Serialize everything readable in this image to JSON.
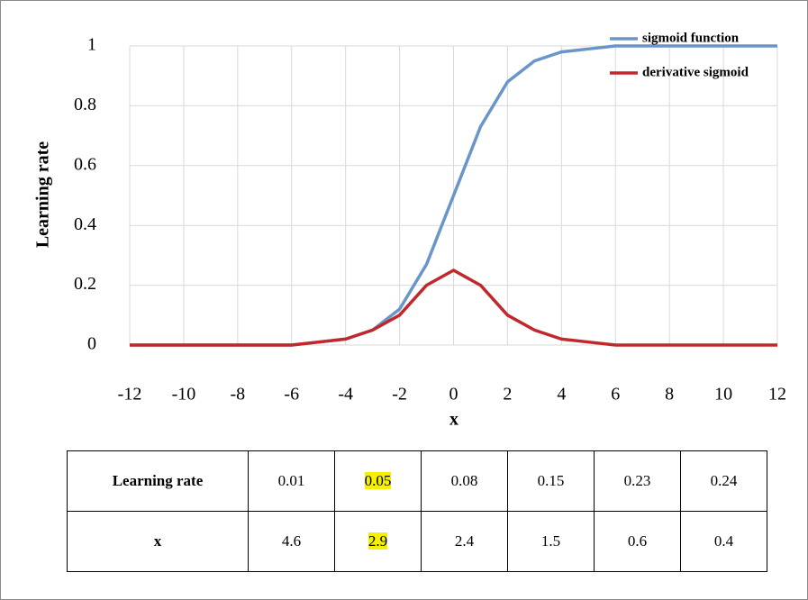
{
  "chart_data": {
    "type": "line",
    "x": [
      -12,
      -11,
      -10,
      -9,
      -8,
      -7,
      -6,
      -5,
      -4,
      -3,
      -2,
      -1,
      0,
      1,
      2,
      3,
      4,
      5,
      6,
      7,
      8,
      9,
      10,
      11,
      12
    ],
    "series": [
      {
        "name": "sigmoid function",
        "color": "#6a95c9",
        "values": [
          0,
          0,
          0,
          0,
          0,
          0,
          0,
          0.01,
          0.02,
          0.05,
          0.12,
          0.27,
          0.5,
          0.73,
          0.88,
          0.95,
          0.98,
          0.99,
          1,
          1,
          1,
          1,
          1,
          1,
          1
        ]
      },
      {
        "name": "derivative sigmoid",
        "color": "#c0282b",
        "values": [
          0,
          0,
          0,
          0,
          0,
          0,
          0,
          0.01,
          0.02,
          0.05,
          0.1,
          0.2,
          0.25,
          0.2,
          0.1,
          0.05,
          0.02,
          0.01,
          0,
          0,
          0,
          0,
          0,
          0,
          0
        ]
      }
    ],
    "xlabel": "x",
    "ylabel": "Learning rate",
    "xlim": [
      -12,
      12
    ],
    "xticks": [
      -12,
      -10,
      -8,
      -6,
      -4,
      -2,
      0,
      2,
      4,
      6,
      8,
      10,
      12
    ],
    "ylim": [
      0,
      1
    ],
    "yticks": [
      0,
      0.2,
      0.4,
      0.6,
      0.8,
      1
    ],
    "grid": true,
    "legend": "top-right"
  },
  "table": {
    "rows": [
      [
        "Learning rate",
        "0.01",
        "0.05",
        "0.08",
        "0.15",
        "0.23",
        "0.24"
      ],
      [
        "x",
        "4.6",
        "2.9",
        "2.4",
        "1.5",
        "0.6",
        "0.4"
      ]
    ]
  }
}
